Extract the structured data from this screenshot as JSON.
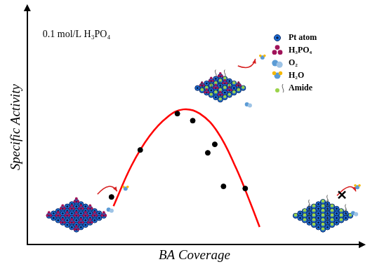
{
  "chart_data": {
    "type": "scatter",
    "annotation": "0.1 mol/L H₃PO₄",
    "x_label": "BA Coverage",
    "y_label": "Specific Activity",
    "xlim": [
      0,
      10
    ],
    "ylim": [
      0,
      10
    ],
    "tick_labels": false,
    "grid": false,
    "legend": "upper right",
    "legend_labels": [
      "Pt atom",
      "H₃PO₄",
      "O₂",
      "H₂O",
      "Amide"
    ],
    "series": [
      {
        "type": "scatter",
        "color": "#000000",
        "marker": "circle",
        "x": [
          2.52,
          3.38,
          4.49,
          4.95,
          5.4,
          5.61,
          5.87,
          6.52
        ],
        "values": [
          2.03,
          4.03,
          5.58,
          5.28,
          3.91,
          4.27,
          2.48,
          2.39
        ]
      },
      {
        "type": "line",
        "color": "#ff0000",
        "line_style": "solid",
        "x": [
          2.58,
          3.12,
          3.66,
          4.19,
          4.67,
          5.16,
          5.7,
          6.24,
          6.67,
          6.95
        ],
        "values": [
          1.64,
          3.37,
          4.63,
          5.43,
          5.76,
          5.58,
          4.78,
          3.28,
          1.79,
          0.75
        ]
      }
    ]
  }
}
